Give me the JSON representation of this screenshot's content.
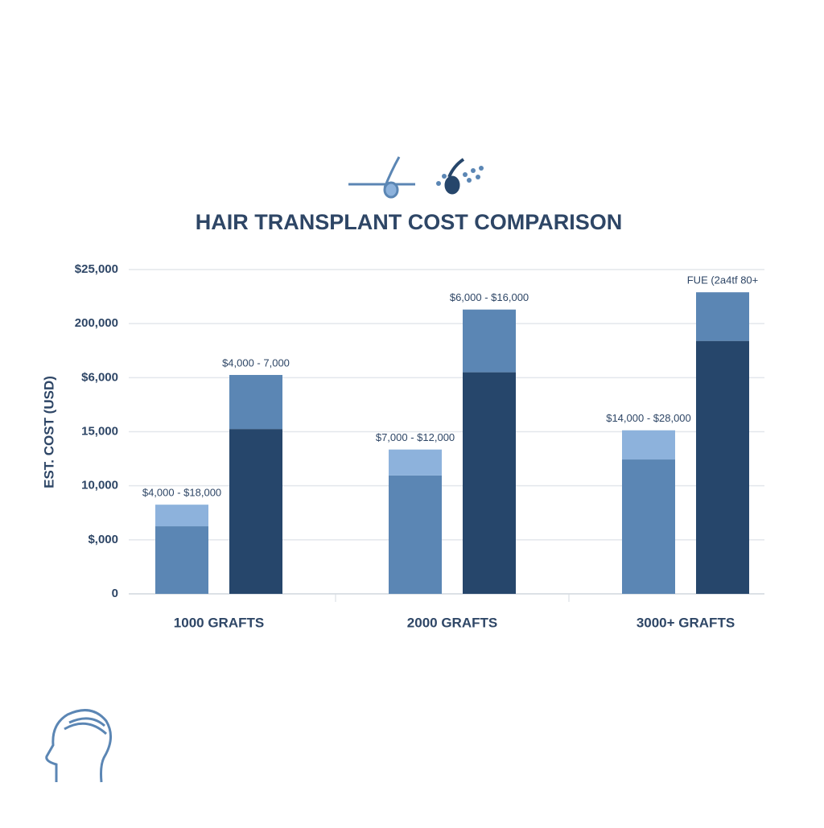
{
  "chart_data": {
    "type": "stacked-bar",
    "title": "HAIR TRANSPLANT COST COMPARISON",
    "y_label": "EST. COST (USD)",
    "categories": [
      "1000 GRAFTS",
      "2000 GRAFTS",
      "3000+ GRAFTS"
    ],
    "ylim": [
      0,
      30000
    ],
    "yticks": [
      0,
      {
        "value": 5000,
        "label": "$,000"
      },
      {
        "value": 10000,
        "label": "10,000"
      },
      {
        "value": 15000,
        "label": "15,000"
      },
      {
        "value": 20000,
        "label": "$6,000"
      },
      {
        "value": 25000,
        "label": "200,000"
      },
      {
        "value": 30000,
        "label": "$25,000"
      }
    ],
    "grid": true,
    "series": [
      {
        "stack": 0,
        "color": "#5b86b4",
        "values": [
          6250,
          10950,
          12430
        ]
      },
      {
        "stack": 0,
        "color": "#8db2dc",
        "values": [
          2000,
          2400,
          2700
        ],
        "top_labels": [
          "$4,000 - $18,000",
          "$7,000 - $12,000",
          "$14,000 - $28,000"
        ]
      },
      {
        "stack": 1,
        "color": "#26466b",
        "values": [
          15250,
          20500,
          23400
        ]
      },
      {
        "stack": 1,
        "color": "#5b86b4",
        "values": [
          5000,
          5800,
          4500
        ],
        "top_labels": [
          "$4,000 - 7,000",
          "$6,000 - $16,000",
          "FUE (2a4tf 80+"
        ]
      }
    ]
  }
}
